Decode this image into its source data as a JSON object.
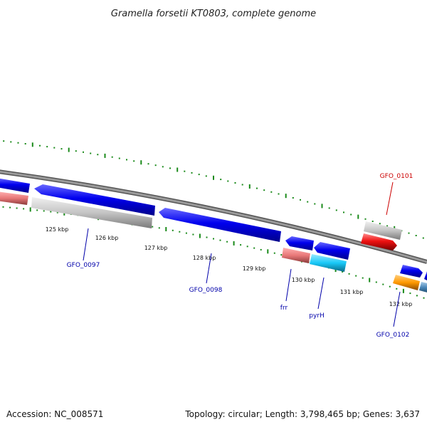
{
  "title": "Gramella forsetii KT0803, complete genome",
  "footer": {
    "accession": "Accession: NC_008571",
    "summary": "Topology: circular; Length: 3,798,465 bp; Genes: 3,637"
  },
  "scale_labels": [
    "125 kbp",
    "126 kbp",
    "127 kbp",
    "128 kbp",
    "129 kbp",
    "130 kbp",
    "131 kbp",
    "132 kbp"
  ],
  "gene_labels": [
    {
      "text": "GFO_0097",
      "color": "#0000aa"
    },
    {
      "text": "GFO_0098",
      "color": "#0000aa"
    },
    {
      "text": "frr",
      "color": "#0000aa"
    },
    {
      "text": "pyrH",
      "color": "#0000aa"
    },
    {
      "text": "GFO_0101",
      "color": "#cc0000"
    },
    {
      "text": "GFO_0102",
      "color": "#0000aa"
    }
  ],
  "colors": {
    "backbone": "#777777",
    "tick": "#1a8a1a",
    "cds_blue": "#0000ee",
    "gray_rna": "#c8c8c8",
    "pink": "#e88080",
    "cyan": "#18c8f8",
    "red": "#ee1111",
    "orange": "#ff9900",
    "steel": "#4a86b8"
  }
}
